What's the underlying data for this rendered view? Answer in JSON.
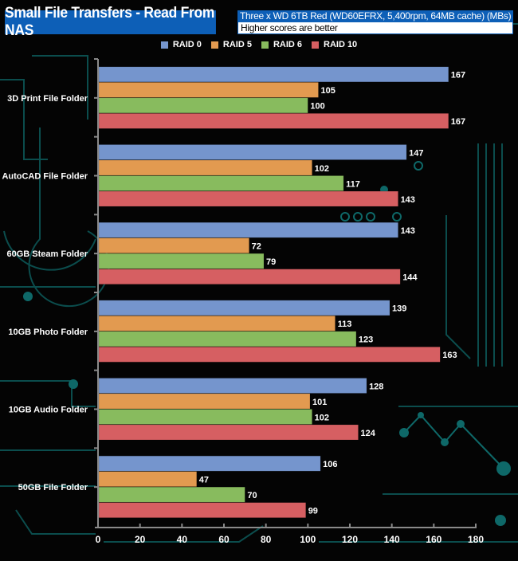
{
  "header": {
    "title": "Small File Transfers - Read From NAS",
    "subtitle": "Three x WD 6TB Red (WD60EFRX, 5,400rpm, 64MB cache) (MBs)",
    "note": "Higher scores are better"
  },
  "colors": {
    "header_bg": "#0d5fb7",
    "background": "#040404",
    "circuit": "#0f6b6b",
    "axis": "#8a8a8a"
  },
  "chart_data": {
    "type": "bar",
    "orientation": "horizontal",
    "title": "Small File Transfers - Read From NAS",
    "subtitle": "Three x WD 6TB Red (WD60EFRX, 5,400rpm, 64MB cache) (MBs)",
    "xlabel": "",
    "ylabel": "",
    "xlim": [
      0,
      180
    ],
    "xticks": [
      0,
      20,
      40,
      60,
      80,
      100,
      120,
      140,
      160,
      180
    ],
    "grid": false,
    "legend_position": "top-center",
    "categories": [
      "3D Print File Folder",
      "AutoCAD File Folder",
      "60GB Steam Folder",
      "10GB Photo Folder",
      "10GB Audio Folder",
      "50GB File Folder"
    ],
    "series": [
      {
        "name": "RAID 0",
        "color": "#7595cd",
        "values": [
          167,
          147,
          143,
          139,
          128,
          106
        ]
      },
      {
        "name": "RAID 5",
        "color": "#e29a50",
        "values": [
          105,
          102,
          72,
          113,
          101,
          47
        ]
      },
      {
        "name": "RAID 6",
        "color": "#88bb5e",
        "values": [
          100,
          117,
          79,
          123,
          102,
          70
        ]
      },
      {
        "name": "RAID 10",
        "color": "#d65f62",
        "values": [
          167,
          143,
          144,
          163,
          124,
          99
        ]
      }
    ]
  }
}
